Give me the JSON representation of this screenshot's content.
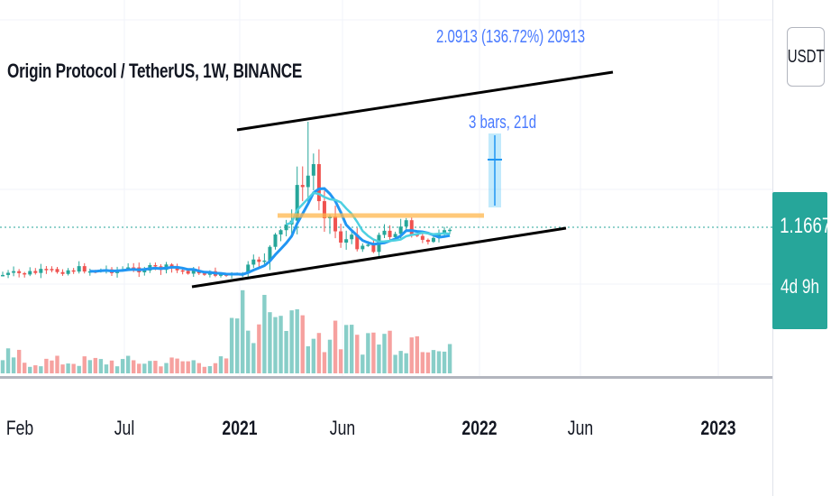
{
  "header": {
    "title": "Origin Protocol / TetherUS, 1W, BINANCE"
  },
  "price_axis": {
    "currency": "USDT",
    "current_price": "1.1667",
    "countdown": "4d 9h"
  },
  "measure": {
    "range_label": "2.0913 (136.72%) 20913",
    "bars_label": "3 bars, 21d"
  },
  "time_axis": {
    "ticks": [
      "Feb",
      "Jul",
      "2021",
      "Jun",
      "2022",
      "Jun",
      "2023"
    ]
  },
  "colors": {
    "up": "#26a69a",
    "down": "#ef5350",
    "ma": "#2196f3",
    "ma_secondary": "#4dd0e1",
    "level": "#ffb74d",
    "trendline": "#000000"
  },
  "chart_data": {
    "type": "candlestick",
    "title": "Origin Protocol / TetherUS, 1W, BINANCE",
    "interval": "1W",
    "current_price": 1.1667,
    "x_ticks": [
      "Feb",
      "Jul",
      "2021",
      "Jun",
      "2022",
      "Jun",
      "2023"
    ],
    "annotations": [
      "Upper trendline (black) rising from early 2021 to mid 2022",
      "Lower trendline (black) rising from late 2020 to mid 2022",
      "Horizontal level (orange) at the spring 2021 breakdown",
      "Measure tool: 2.0913 (136.72%) 20913 / 3 bars, 21d"
    ]
  }
}
